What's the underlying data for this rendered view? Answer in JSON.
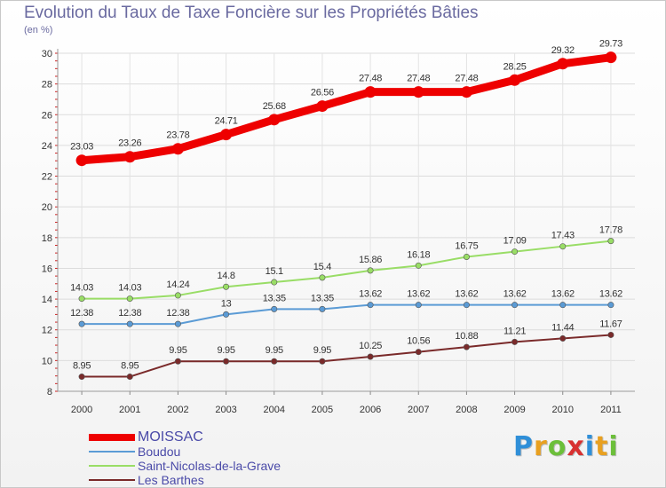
{
  "header": {
    "title": "Evolution du Taux de Taxe Foncière sur les Propriétés Bâties",
    "unit": "(en %)"
  },
  "brand": {
    "letters": [
      "P",
      "r",
      "o",
      "x",
      "i",
      "t",
      "i"
    ],
    "colors": [
      "#2f8fd8",
      "#e8a020",
      "#6cbf3a",
      "#d83030",
      "#2f8fd8",
      "#e8a020",
      "#6cbf3a"
    ]
  },
  "chart_data": {
    "type": "line",
    "title": "Evolution du Taux de Taxe Foncière sur les Propriétés Bâties",
    "ylabel": "(en %)",
    "xlabel": "",
    "x": [
      "2000",
      "2001",
      "2002",
      "2003",
      "2004",
      "2005",
      "2006",
      "2007",
      "2008",
      "2009",
      "2010",
      "2011"
    ],
    "ylim": [
      8,
      30
    ],
    "yticks": [
      8,
      10,
      12,
      14,
      16,
      18,
      20,
      22,
      24,
      26,
      28,
      30
    ],
    "grid": true,
    "legend_position": "bottom-left",
    "series": [
      {
        "name": "MOISSAC",
        "color": "#ee0000",
        "values": [
          23.03,
          23.26,
          23.78,
          24.71,
          25.68,
          26.56,
          27.48,
          27.48,
          27.48,
          28.25,
          29.32,
          29.73
        ],
        "labels": [
          "23.03",
          "23.26",
          "23.78",
          "24.71",
          "25.68",
          "26.56",
          "27.48",
          "27.48",
          "27.48",
          "28.25",
          "29.32",
          "29.73"
        ]
      },
      {
        "name": "Boudou",
        "color": "#5b9bd5",
        "values": [
          12.38,
          12.38,
          12.38,
          13,
          13.35,
          13.35,
          13.62,
          13.62,
          13.62,
          13.62,
          13.62,
          13.62
        ],
        "labels": [
          "12.38",
          "12.38",
          "12.38",
          "13",
          "13.35",
          "13.35",
          "13.62",
          "13.62",
          "13.62",
          "13.62",
          "13.62",
          "13.62"
        ]
      },
      {
        "name": "Saint-Nicolas-de-la-Grave",
        "color": "#99dd66",
        "values": [
          14.03,
          14.03,
          14.24,
          14.8,
          15.1,
          15.4,
          15.86,
          16.18,
          16.75,
          17.09,
          17.43,
          17.78
        ],
        "labels": [
          "14.03",
          "14.03",
          "14.24",
          "14.8",
          "15.1",
          "15.4",
          "15.86",
          "16.18",
          "16.75",
          "17.09",
          "17.43",
          "17.78"
        ]
      },
      {
        "name": "Les Barthes",
        "color": "#7a2a2a",
        "values": [
          8.95,
          8.95,
          9.95,
          9.95,
          9.95,
          9.95,
          10.25,
          10.56,
          10.88,
          11.21,
          11.44,
          11.67
        ],
        "labels": [
          "8.95",
          "8.95",
          "9.95",
          "9.95",
          "9.95",
          "9.95",
          "10.25",
          "10.56",
          "10.88",
          "11.21",
          "11.44",
          "11.67"
        ]
      }
    ]
  }
}
